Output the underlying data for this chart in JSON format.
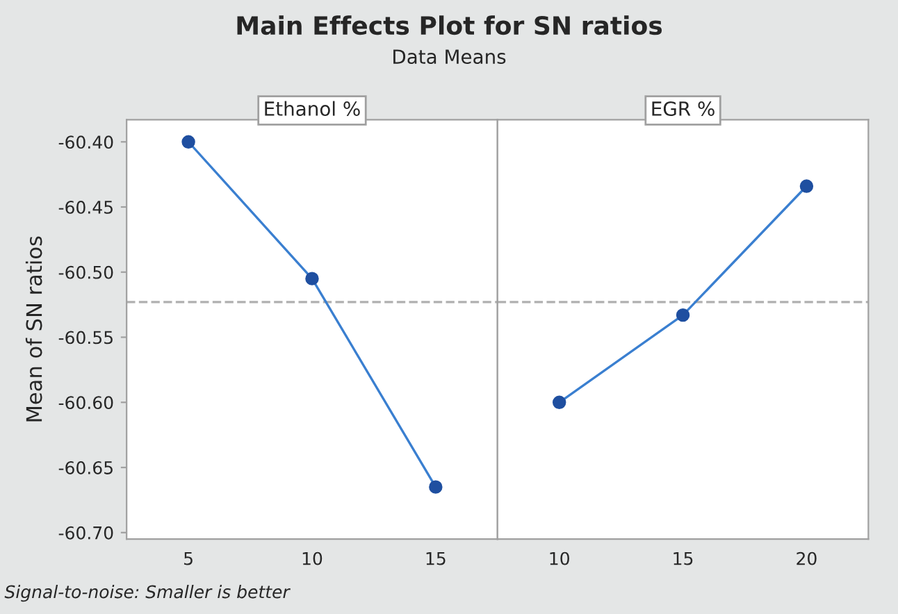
{
  "chart_data": [
    {
      "type": "line",
      "title": "Main Effects Plot for SN ratios",
      "subtitle": "Data Means",
      "xlabel": "Ethanol %",
      "ylabel": "Mean of SN ratios",
      "annotations": [
        "Signal-to-noise: Smaller is better"
      ],
      "x": [
        5,
        10,
        15
      ],
      "series": [
        {
          "color": "#3a7fd0",
          "values": [
            -60.4,
            -60.505,
            -60.665
          ]
        }
      ],
      "xlim": [
        2.5,
        17.5
      ],
      "xticks": [
        5,
        10,
        15
      ],
      "ylim": [
        -60.705,
        -60.383
      ],
      "yticks": [
        {
          "value": -60.4,
          "label": "-60.40"
        },
        {
          "value": -60.45,
          "label": "-60.45"
        },
        {
          "value": -60.5,
          "label": "-60.50"
        },
        {
          "value": -60.55,
          "label": "-60.55"
        },
        {
          "value": -60.6,
          "label": "-60.60"
        },
        {
          "value": -60.65,
          "label": "-60.65"
        },
        {
          "value": -60.7,
          "label": "-60.70"
        }
      ],
      "ref_lines": [
        {
          "axis": "y",
          "value": -60.523,
          "color": "#b0b0b0",
          "line_style": "dashed"
        }
      ],
      "marker": "circle",
      "grid": false,
      "legend": false
    },
    {
      "type": "line",
      "xlabel": "EGR %",
      "x": [
        10,
        15,
        20
      ],
      "series": [
        {
          "color": "#3a7fd0",
          "values": [
            -60.6,
            -60.533,
            -60.434
          ]
        }
      ],
      "xlim": [
        7.5,
        22.5
      ],
      "xticks": [
        10,
        15,
        20
      ],
      "ylim": [
        -60.705,
        -60.383
      ],
      "tick_labels": "x",
      "ref_lines": [
        {
          "axis": "y",
          "value": -60.523,
          "color": "#b0b0b0",
          "line_style": "dashed"
        }
      ],
      "marker": "circle",
      "grid": false,
      "legend": false
    }
  ]
}
